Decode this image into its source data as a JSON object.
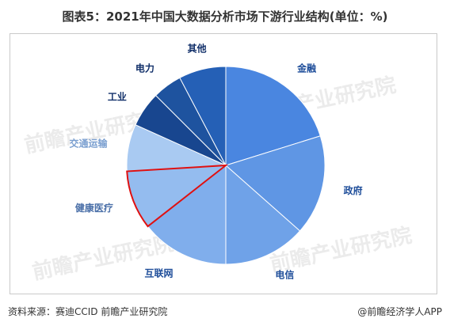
{
  "title": "图表5：2021年中国大数据分析市场下游行业结构(单位：%)",
  "footer": {
    "source": "资料来源：赛迪CCID 前瞻产业研究院",
    "credit": "@前瞻经济学人APP"
  },
  "watermark": "前瞻产业研究院",
  "chart_data": {
    "type": "pie",
    "title": "图表5：2021年中国大数据分析市场下游行业结构(单位：%)",
    "highlighted": "健康医疗",
    "slices": [
      {
        "label": "金融",
        "value": 21,
        "color": "#4a86e0",
        "label_color": "#1f4e9a"
      },
      {
        "label": "政府",
        "value": 17,
        "color": "#5f96e4",
        "label_color": "#1f4e9a"
      },
      {
        "label": "电信",
        "value": 14,
        "color": "#6fa2e8",
        "label_color": "#1f4e9a"
      },
      {
        "label": "互联网",
        "value": 15,
        "color": "#80aeec",
        "label_color": "#1f4e9a"
      },
      {
        "label": "健康医疗",
        "value": 10,
        "color": "#94bcef",
        "label_color": "#4a6fa8"
      },
      {
        "label": "交通运输",
        "value": 8,
        "color": "#a9caf2",
        "label_color": "#7a9fd0"
      },
      {
        "label": "工业",
        "value": 6,
        "color": "#18468f",
        "label_color": "#12306a"
      },
      {
        "label": "电力",
        "value": 5,
        "color": "#1e539f",
        "label_color": "#12306a"
      },
      {
        "label": "其他",
        "value": 8,
        "color": "#2560b6",
        "label_color": "#12306a"
      }
    ]
  }
}
